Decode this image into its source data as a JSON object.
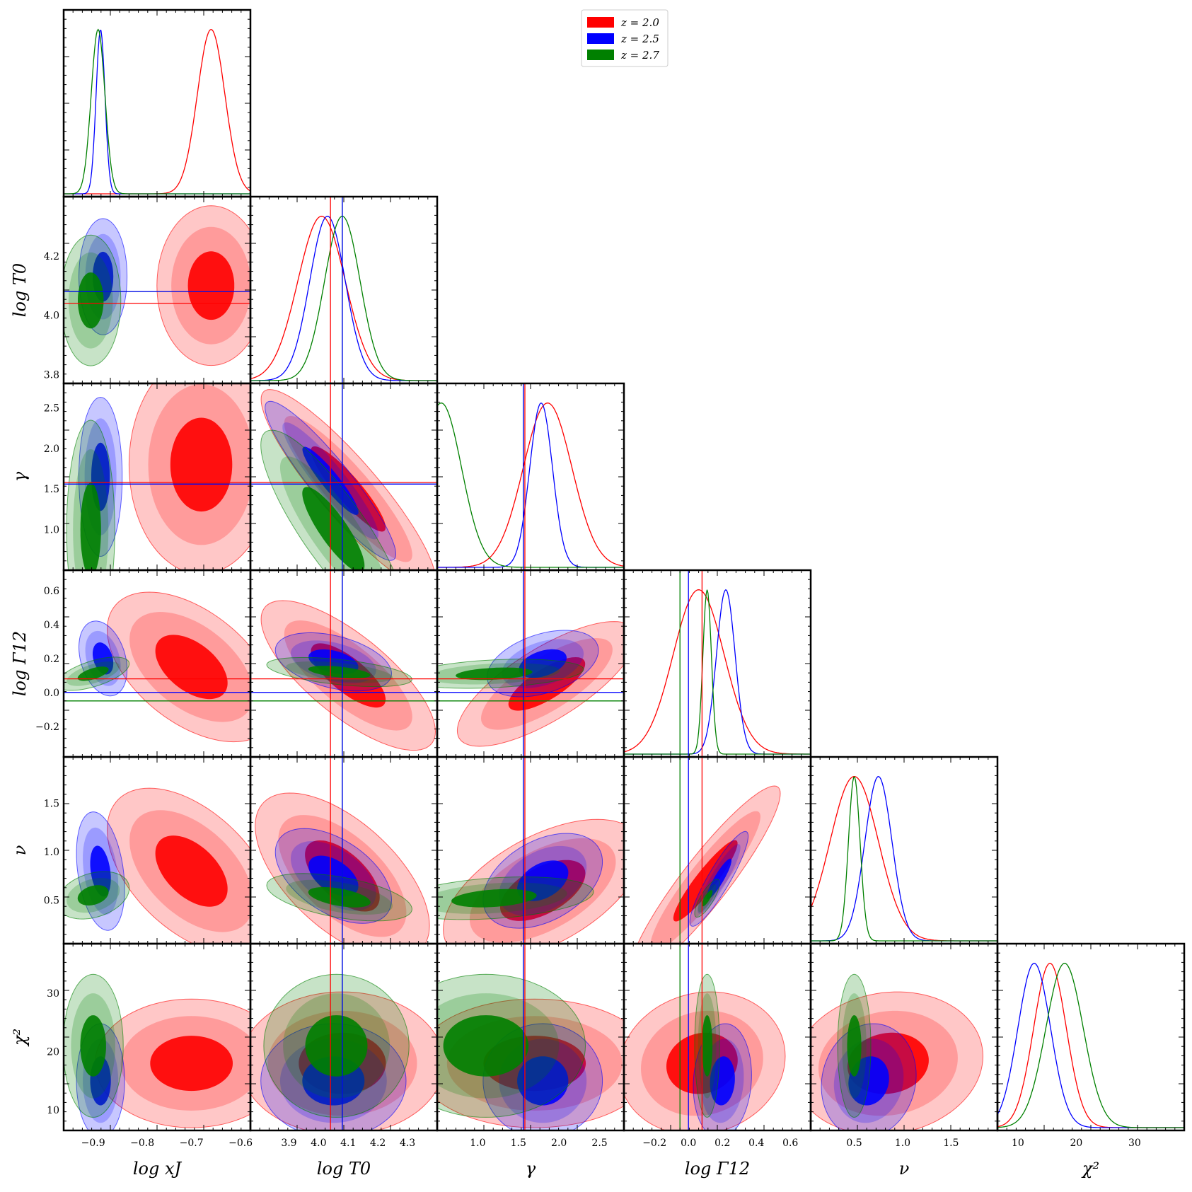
{
  "chart_data": {
    "type": "corner",
    "title": "",
    "parameters": [
      {
        "key": "xJ",
        "label": "log x_J",
        "display_tick_label": "log xJ",
        "range": [
          -0.96,
          -0.58
        ],
        "ticks": [
          -0.9,
          -0.8,
          -0.7,
          -0.6
        ],
        "tick_labels": [
          "−0.9",
          "−0.8",
          "−0.7",
          "−0.6"
        ]
      },
      {
        "key": "T0",
        "label": "log T_0",
        "range": [
          3.77,
          4.4
        ],
        "ticks": [
          3.8,
          3.9,
          4.0,
          4.1,
          4.2,
          4.3
        ],
        "x_tick_labels": [
          "3.9",
          "4.0",
          "4.1",
          "4.2",
          "4.3"
        ],
        "y_tick_labels": [
          "3.8",
          "4.0",
          "4.2"
        ]
      },
      {
        "key": "gamma",
        "label": "γ",
        "range": [
          0.5,
          2.8
        ],
        "x_tick_labels": [
          "1.0",
          "1.5",
          "2.0",
          "2.5"
        ],
        "y_tick_labels": [
          "1.0",
          "1.5",
          "2.0",
          "2.5"
        ]
      },
      {
        "key": "G12",
        "label": "log Γ_12",
        "range": [
          -0.38,
          0.72
        ],
        "x_tick_labels": [
          "−0.2",
          "0.0",
          "0.2",
          "0.4",
          "0.6"
        ],
        "y_tick_labels": [
          "−0.2",
          "0.0",
          "0.2",
          "0.4",
          "0.6"
        ]
      },
      {
        "key": "nu",
        "label": "ν",
        "range": [
          0.05,
          1.98
        ],
        "x_tick_labels": [
          "0.5",
          "1.0",
          "1.5"
        ],
        "y_tick_labels": [
          "0.5",
          "1.0",
          "1.5"
        ]
      },
      {
        "key": "chi2",
        "label": "χ²",
        "range": [
          6.5,
          38.5
        ],
        "x_tick_labels": [
          "10",
          "20",
          "30"
        ],
        "y_tick_labels": [
          "10",
          "20",
          "30"
        ]
      }
    ],
    "axis_label_text": [
      "log xJ",
      "log T0",
      "γ",
      "log Γ12",
      "ν",
      "χ²"
    ],
    "legend": {
      "location": "top-center",
      "entries": [
        {
          "label": "z = 2.0",
          "color": "#ff0000"
        },
        {
          "label": "z = 2.5",
          "color": "#0000ff"
        },
        {
          "label": "z = 2.7",
          "color": "#008000"
        }
      ]
    },
    "reference_lines": {
      "T0": {
        "z2.0": 4.04,
        "z2.5": 4.08,
        "z2.7": 4.08
      },
      "gamma": {
        "z2.0": 1.58,
        "z2.5": 1.56,
        "z2.7": 1.56
      },
      "G12": {
        "z2.0": 0.08,
        "z2.5": 0.0,
        "z2.7": -0.05
      }
    },
    "series": [
      {
        "name": "z = 2.0",
        "color": "#ff0000",
        "marginals": {
          "xJ": {
            "mean": -0.66,
            "sd": 0.028
          },
          "T0": {
            "mean": 4.01,
            "sd": 0.08
          },
          "gamma": {
            "mean": 1.86,
            "sd": 0.3
          },
          "G12": {
            "mean": 0.06,
            "sd": 0.15
          },
          "nu": {
            "mean": 0.5,
            "sd": 0.25
          },
          "chi2": {
            "mean": 15.5,
            "sd": 2.8
          }
        },
        "pairs": [
          {
            "x": "xJ",
            "y": "T0",
            "cx": -0.66,
            "cy": 4.1,
            "sx": 0.045,
            "sy": 0.11,
            "rho": 0.0
          },
          {
            "x": "xJ",
            "y": "gamma",
            "cx": -0.68,
            "cy": 1.8,
            "sx": 0.06,
            "sy": 0.55,
            "rho": 0.0
          },
          {
            "x": "xJ",
            "y": "G12",
            "cx": -0.7,
            "cy": 0.15,
            "sx": 0.07,
            "sy": 0.18,
            "rho": -0.5
          },
          {
            "x": "xJ",
            "y": "nu",
            "cx": -0.7,
            "cy": 0.8,
            "sx": 0.07,
            "sy": 0.35,
            "rho": -0.5
          },
          {
            "x": "xJ",
            "y": "chi2",
            "cx": -0.7,
            "cy": 18,
            "sx": 0.08,
            "sy": 4.5,
            "rho": 0.0
          },
          {
            "x": "T0",
            "y": "gamma",
            "cx": 4.1,
            "cy": 1.5,
            "sx": 0.12,
            "sy": 0.5,
            "rho": -0.9
          },
          {
            "x": "T0",
            "y": "G12",
            "cx": 4.1,
            "cy": 0.1,
            "sx": 0.12,
            "sy": 0.18,
            "rho": -0.75
          },
          {
            "x": "T0",
            "y": "nu",
            "cx": 4.08,
            "cy": 0.75,
            "sx": 0.12,
            "sy": 0.35,
            "rho": -0.6
          },
          {
            "x": "T0",
            "y": "chi2",
            "cx": 4.08,
            "cy": 18,
            "sx": 0.14,
            "sy": 5,
            "rho": 0.0
          },
          {
            "x": "gamma",
            "y": "G12",
            "cx": 1.85,
            "cy": 0.05,
            "sx": 0.45,
            "sy": 0.15,
            "rho": 0.75
          },
          {
            "x": "gamma",
            "y": "nu",
            "cx": 1.8,
            "cy": 0.6,
            "sx": 0.5,
            "sy": 0.3,
            "rho": 0.55
          },
          {
            "x": "gamma",
            "y": "chi2",
            "cx": 1.7,
            "cy": 18,
            "sx": 0.6,
            "sy": 4.5,
            "rho": 0.0
          },
          {
            "x": "G12",
            "y": "nu",
            "cx": 0.1,
            "cy": 0.7,
            "sx": 0.18,
            "sy": 0.4,
            "rho": 0.92
          },
          {
            "x": "G12",
            "y": "chi2",
            "cx": 0.08,
            "cy": 18,
            "sx": 0.2,
            "sy": 5,
            "rho": 0.1
          },
          {
            "x": "nu",
            "y": "chi2",
            "cx": 0.85,
            "cy": 18,
            "sx": 0.4,
            "sy": 5,
            "rho": 0.1
          }
        ]
      },
      {
        "name": "z = 2.5",
        "color": "#0000ff",
        "marginals": {
          "xJ": {
            "mean": -0.885,
            "sd": 0.009
          },
          "T0": {
            "mean": 4.03,
            "sd": 0.06
          },
          "gamma": {
            "mean": 1.78,
            "sd": 0.14
          },
          "G12": {
            "mean": 0.22,
            "sd": 0.055
          },
          "nu": {
            "mean": 0.75,
            "sd": 0.14
          },
          "chi2": {
            "mean": 12.8,
            "sd": 2.8
          }
        },
        "pairs": [
          {
            "x": "xJ",
            "y": "T0",
            "cx": -0.88,
            "cy": 4.13,
            "sx": 0.02,
            "sy": 0.08,
            "rho": 0.0
          },
          {
            "x": "xJ",
            "y": "gamma",
            "cx": -0.885,
            "cy": 1.65,
            "sx": 0.018,
            "sy": 0.4,
            "rho": 0.0
          },
          {
            "x": "xJ",
            "y": "G12",
            "cx": -0.88,
            "cy": 0.2,
            "sx": 0.02,
            "sy": 0.09,
            "rho": -0.3
          },
          {
            "x": "xJ",
            "y": "nu",
            "cx": -0.885,
            "cy": 0.8,
            "sx": 0.02,
            "sy": 0.25,
            "rho": -0.3
          },
          {
            "x": "xJ",
            "y": "chi2",
            "cx": -0.885,
            "cy": 15,
            "sx": 0.02,
            "sy": 4,
            "rho": 0.0
          },
          {
            "x": "T0",
            "y": "gamma",
            "cx": 4.04,
            "cy": 1.6,
            "sx": 0.09,
            "sy": 0.4,
            "rho": -0.92
          },
          {
            "x": "T0",
            "y": "G12",
            "cx": 4.05,
            "cy": 0.18,
            "sx": 0.08,
            "sy": 0.07,
            "rho": -0.4
          },
          {
            "x": "T0",
            "y": "nu",
            "cx": 4.05,
            "cy": 0.75,
            "sx": 0.08,
            "sy": 0.2,
            "rho": -0.5
          },
          {
            "x": "T0",
            "y": "chi2",
            "cx": 4.05,
            "cy": 15,
            "sx": 0.1,
            "sy": 4,
            "rho": 0.0
          },
          {
            "x": "gamma",
            "y": "G12",
            "cx": 1.8,
            "cy": 0.17,
            "sx": 0.28,
            "sy": 0.08,
            "rho": 0.4
          },
          {
            "x": "gamma",
            "y": "nu",
            "cx": 1.8,
            "cy": 0.7,
            "sx": 0.3,
            "sy": 0.2,
            "rho": 0.4
          },
          {
            "x": "gamma",
            "y": "chi2",
            "cx": 1.8,
            "cy": 15,
            "sx": 0.3,
            "sy": 4,
            "rho": 0.0
          },
          {
            "x": "G12",
            "y": "nu",
            "cx": 0.18,
            "cy": 0.72,
            "sx": 0.07,
            "sy": 0.2,
            "rho": 0.9
          },
          {
            "x": "G12",
            "y": "chi2",
            "cx": 0.2,
            "cy": 15,
            "sx": 0.07,
            "sy": 4,
            "rho": 0.1
          },
          {
            "x": "nu",
            "y": "chi2",
            "cx": 0.65,
            "cy": 15,
            "sx": 0.2,
            "sy": 4,
            "rho": 0.1
          }
        ]
      },
      {
        "name": "z = 2.7",
        "color": "#008000",
        "marginals": {
          "xJ": {
            "mean": -0.89,
            "sd": 0.014
          },
          "T0": {
            "mean": 4.08,
            "sd": 0.06
          },
          "gamma": {
            "mean": 0.55,
            "sd": 0.25
          },
          "G12": {
            "mean": 0.11,
            "sd": 0.025
          },
          "nu": {
            "mean": 0.5,
            "sd": 0.06
          },
          "chi2": {
            "mean": 18.0,
            "sd": 3.2
          }
        },
        "pairs": [
          {
            "x": "xJ",
            "y": "T0",
            "cx": -0.905,
            "cy": 4.05,
            "sx": 0.025,
            "sy": 0.09,
            "rho": 0.0
          },
          {
            "x": "xJ",
            "y": "gamma",
            "cx": -0.905,
            "cy": 1.0,
            "sx": 0.02,
            "sy": 0.55,
            "rho": 0.0
          },
          {
            "x": "xJ",
            "y": "G12",
            "cx": -0.9,
            "cy": 0.11,
            "sx": 0.03,
            "sy": 0.04,
            "rho": 0.6
          },
          {
            "x": "xJ",
            "y": "nu",
            "cx": -0.9,
            "cy": 0.55,
            "sx": 0.03,
            "sy": 0.1,
            "rho": 0.3
          },
          {
            "x": "xJ",
            "y": "chi2",
            "cx": -0.9,
            "cy": 21,
            "sx": 0.025,
            "sy": 5,
            "rho": 0.0
          },
          {
            "x": "T0",
            "y": "gamma",
            "cx": 4.05,
            "cy": 1.0,
            "sx": 0.1,
            "sy": 0.5,
            "rho": -0.85
          },
          {
            "x": "T0",
            "y": "G12",
            "cx": 4.07,
            "cy": 0.12,
            "sx": 0.1,
            "sy": 0.035,
            "rho": -0.5
          },
          {
            "x": "T0",
            "y": "nu",
            "cx": 4.07,
            "cy": 0.53,
            "sx": 0.1,
            "sy": 0.1,
            "rho": -0.5
          },
          {
            "x": "T0",
            "y": "chi2",
            "cx": 4.06,
            "cy": 21,
            "sx": 0.1,
            "sy": 5,
            "rho": 0.0
          },
          {
            "x": "gamma",
            "y": "G12",
            "cx": 1.2,
            "cy": 0.11,
            "sx": 0.45,
            "sy": 0.035,
            "rho": 0.3
          },
          {
            "x": "gamma",
            "y": "nu",
            "cx": 1.2,
            "cy": 0.52,
            "sx": 0.5,
            "sy": 0.09,
            "rho": 0.3
          },
          {
            "x": "gamma",
            "y": "chi2",
            "cx": 1.1,
            "cy": 21,
            "sx": 0.5,
            "sy": 5,
            "rho": 0.0
          },
          {
            "x": "G12",
            "y": "nu",
            "cx": 0.11,
            "cy": 0.52,
            "sx": 0.03,
            "sy": 0.08,
            "rho": 0.8
          },
          {
            "x": "G12",
            "y": "chi2",
            "cx": 0.11,
            "cy": 21,
            "sx": 0.03,
            "sy": 5,
            "rho": 0.0
          },
          {
            "x": "nu",
            "y": "chi2",
            "cx": 0.5,
            "cy": 21,
            "sx": 0.07,
            "sy": 5,
            "rho": 0.0
          }
        ]
      }
    ]
  }
}
